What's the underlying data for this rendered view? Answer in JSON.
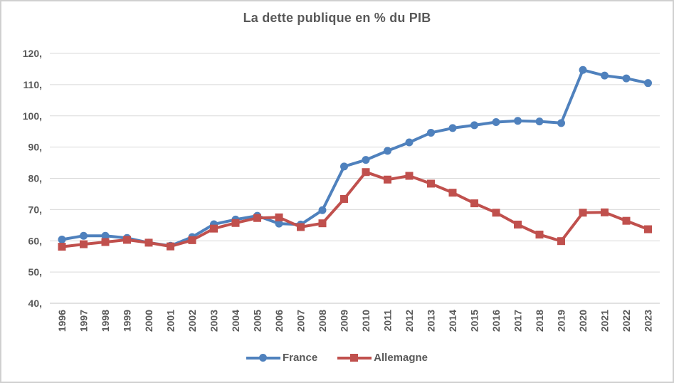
{
  "window": {
    "background": "#ffffff",
    "border_color": "#d0d0d0"
  },
  "chart_data": {
    "type": "line",
    "title": "La dette publique en % du PIB",
    "title_color": "#595959",
    "xlabel": "",
    "ylabel": "",
    "ylim": [
      40,
      120
    ],
    "yticks": [
      40,
      50,
      60,
      70,
      80,
      90,
      100,
      110,
      120
    ],
    "ytick_labels": [
      "40,",
      "50,",
      "60,",
      "70,",
      "80,",
      "90,",
      "100,",
      "110,",
      "120,"
    ],
    "grid": "horizontal",
    "gridline_color": "#d9d9d9",
    "axis_line_color": "#c3c3c3",
    "tick_label_color": "#595959",
    "legend_position": "bottom",
    "categories": [
      "1996",
      "1997",
      "1998",
      "1999",
      "2000",
      "2001",
      "2002",
      "2003",
      "2004",
      "2005",
      "2006",
      "2007",
      "2008",
      "2009",
      "2010",
      "2011",
      "2012",
      "2013",
      "2014",
      "2015",
      "2016",
      "2017",
      "2018",
      "2019",
      "2020",
      "2021",
      "2022",
      "2023"
    ],
    "series": [
      {
        "name": "France",
        "color": "#4F81BD",
        "marker": "circle",
        "values": [
          60.4,
          61.6,
          61.6,
          60.9,
          59.4,
          58.4,
          61.2,
          65.3,
          66.8,
          68.0,
          65.5,
          65.2,
          69.8,
          83.8,
          85.9,
          88.8,
          91.5,
          94.6,
          96.1,
          97.0,
          98.0,
          98.4,
          98.2,
          97.7,
          114.7,
          112.9,
          112.0,
          110.5
        ]
      },
      {
        "name": "Allemagne",
        "color": "#C0504D",
        "marker": "square",
        "values": [
          58.1,
          58.9,
          59.6,
          60.3,
          59.4,
          58.2,
          60.2,
          63.9,
          65.7,
          67.3,
          67.5,
          64.4,
          65.6,
          73.4,
          82.0,
          79.6,
          80.8,
          78.3,
          75.4,
          72.0,
          69.0,
          65.2,
          62.0,
          59.9,
          69.0,
          69.1,
          66.4,
          63.7
        ]
      }
    ]
  }
}
